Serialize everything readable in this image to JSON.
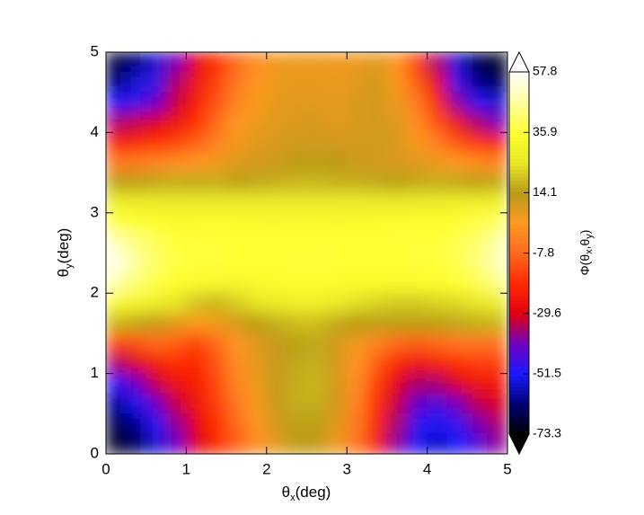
{
  "chart_data": {
    "type": "heatmap",
    "xlabel": [
      "θ",
      "x",
      "(deg)"
    ],
    "ylabel": [
      "θ",
      "y",
      "(deg)"
    ],
    "zlabel": [
      "Φ(θ",
      "x",
      ",θ",
      "y",
      ")"
    ],
    "xlim": [
      0,
      5
    ],
    "ylim": [
      0,
      5
    ],
    "xticks": [
      0,
      1,
      2,
      3,
      4,
      5
    ],
    "yticks": [
      0,
      1,
      2,
      3,
      4,
      5
    ],
    "zlim": [
      -73.3,
      57.8
    ],
    "zticks": [
      -73.3,
      -51.5,
      -29.6,
      -7.8,
      14.1,
      35.9,
      57.8
    ],
    "colors": [
      "#000000",
      "#000070",
      "#1a1aff",
      "#7000c0",
      "#e00010",
      "#ff2a00",
      "#ff6a20",
      "#ff9a20",
      "#b89a18",
      "#e8e828",
      "#ffff30",
      "#ffffa0",
      "#ffffff"
    ],
    "x": [
      0.125,
      0.375,
      0.625,
      0.875,
      1.125,
      1.375,
      1.625,
      1.875,
      2.125,
      2.375,
      2.625,
      2.875,
      3.125,
      3.375,
      3.625,
      3.875,
      4.125,
      4.375,
      4.625,
      4.875
    ],
    "y": [
      4.875,
      4.625,
      4.375,
      4.125,
      3.875,
      3.625,
      3.375,
      3.125,
      2.875,
      2.625,
      2.375,
      2.125,
      1.875,
      1.625,
      1.375,
      1.125,
      0.875,
      0.625,
      0.375,
      0.125
    ],
    "z": [
      [
        -68,
        -62,
        -55,
        -40,
        -28,
        -18,
        -8,
        0,
        5,
        6,
        6,
        5,
        6,
        8,
        2,
        -15,
        -35,
        -55,
        -65,
        -70
      ],
      [
        -62,
        -55,
        -48,
        -35,
        -25,
        -15,
        -5,
        2,
        6,
        7,
        7,
        6,
        8,
        10,
        4,
        -10,
        -28,
        -48,
        -60,
        -65
      ],
      [
        -52,
        -48,
        -42,
        -32,
        -22,
        -12,
        -2,
        4,
        7,
        8,
        8,
        7,
        9,
        10,
        6,
        -4,
        -20,
        -38,
        -50,
        -55
      ],
      [
        -35,
        -33,
        -30,
        -25,
        -18,
        -8,
        2,
        6,
        8,
        9,
        9,
        8,
        9,
        10,
        8,
        0,
        -12,
        -25,
        -35,
        -40
      ],
      [
        -22,
        -20,
        -18,
        -15,
        -10,
        -3,
        5,
        8,
        9,
        10,
        11,
        10,
        10,
        10,
        9,
        4,
        -3,
        -12,
        -18,
        -22
      ],
      [
        -5,
        -4,
        -2,
        0,
        2,
        5,
        8,
        10,
        11,
        13,
        15,
        13,
        11,
        10,
        9,
        8,
        6,
        3,
        0,
        -2
      ],
      [
        15,
        15,
        16,
        17,
        16,
        17,
        15,
        16,
        17,
        18,
        18,
        17,
        17,
        16,
        15,
        16,
        17,
        16,
        15,
        16
      ],
      [
        28,
        27,
        27,
        26,
        27,
        26,
        27,
        27,
        27,
        26,
        26,
        27,
        27,
        27,
        26,
        27,
        27,
        28,
        29,
        30
      ],
      [
        38,
        36,
        35,
        34,
        34,
        35,
        34,
        34,
        33,
        34,
        34,
        33,
        34,
        34,
        35,
        35,
        35,
        36,
        38,
        40
      ],
      [
        50,
        44,
        40,
        37,
        37,
        37,
        36,
        36,
        36,
        36,
        37,
        36,
        36,
        36,
        37,
        37,
        37,
        39,
        42,
        48
      ],
      [
        55,
        47,
        41,
        38,
        37,
        37,
        36,
        36,
        36,
        37,
        37,
        36,
        36,
        36,
        36,
        37,
        37,
        39,
        43,
        50
      ],
      [
        48,
        42,
        38,
        35,
        34,
        33,
        32,
        33,
        34,
        35,
        35,
        34,
        34,
        34,
        34,
        34,
        35,
        36,
        39,
        44
      ],
      [
        33,
        31,
        28,
        25,
        20,
        18,
        21,
        25,
        27,
        29,
        29,
        27,
        24,
        22,
        21,
        21,
        22,
        23,
        25,
        27
      ],
      [
        18,
        16,
        12,
        8,
        4,
        5,
        10,
        14,
        17,
        19,
        19,
        16,
        14,
        15,
        15,
        15,
        15,
        16,
        17,
        18
      ],
      [
        -15,
        -12,
        -8,
        -10,
        -15,
        -8,
        2,
        8,
        12,
        15,
        16,
        10,
        5,
        -2,
        -8,
        -10,
        -8,
        -6,
        -5,
        -6
      ],
      [
        -35,
        -30,
        -22,
        -18,
        -20,
        -12,
        0,
        7,
        12,
        16,
        17,
        10,
        2,
        -10,
        -20,
        -25,
        -22,
        -18,
        -16,
        -16
      ],
      [
        -50,
        -42,
        -32,
        -25,
        -22,
        -14,
        -2,
        6,
        12,
        17,
        18,
        10,
        0,
        -15,
        -28,
        -35,
        -35,
        -30,
        -25,
        -24
      ],
      [
        -60,
        -52,
        -42,
        -32,
        -25,
        -16,
        -5,
        4,
        12,
        17,
        17,
        10,
        -2,
        -18,
        -32,
        -42,
        -45,
        -40,
        -33,
        -30
      ],
      [
        -66,
        -60,
        -50,
        -38,
        -28,
        -18,
        -8,
        2,
        10,
        15,
        15,
        8,
        -4,
        -20,
        -35,
        -48,
        -52,
        -48,
        -40,
        -35
      ],
      [
        -70,
        -65,
        -55,
        -42,
        -30,
        -20,
        -10,
        0,
        8,
        13,
        13,
        6,
        -6,
        -22,
        -38,
        -52,
        -56,
        -52,
        -45,
        -38
      ]
    ]
  }
}
